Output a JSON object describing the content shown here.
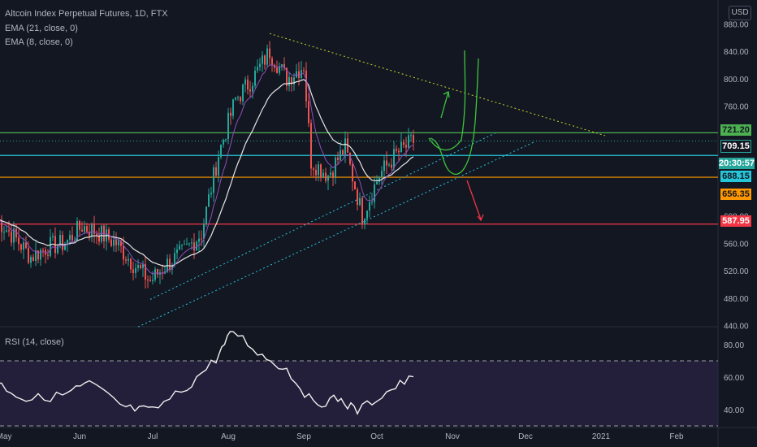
{
  "header": {
    "symbol_line": "Altcoin Index Perpetual Futures, 1D, FTX",
    "ema21_label": "EMA (21, close, 0)",
    "ema8_label": "EMA (8, close, 0)",
    "currency": "USD"
  },
  "rsi_panel": {
    "label": "RSI (14, close)"
  },
  "price_tags": {
    "resistance": "721.20",
    "last_price": "709.15",
    "countdown": "20:30:57",
    "ema_fast": "688.15",
    "support": "656.35",
    "lower_support": "587.95"
  },
  "colors": {
    "background": "#131722",
    "up": "#26a69a",
    "down": "#ef5350",
    "resistance_line": "#4caf50",
    "cyan_line": "#26c6da",
    "orange_line": "#ff9800",
    "red_line": "#f23645",
    "trend_yellow": "#c9d42a",
    "rsi_band": "#2a2141"
  },
  "chart_data": [
    {
      "type": "candlestick",
      "title": "Altcoin Index Perpetual Futures, 1D, FTX",
      "x_tick_labels": [
        "May",
        "Jun",
        "Jul",
        "Aug",
        "Sep",
        "Oct",
        "Nov",
        "Dec",
        "2021",
        "Feb"
      ],
      "y_ticks": [
        440,
        480,
        520,
        560,
        600,
        640,
        680,
        720,
        760,
        800,
        840,
        880
      ],
      "y_tick_labels": [
        "440.00",
        "480.00",
        "520.00",
        "560.00",
        "600.00",
        "",
        "",
        "",
        "760.00",
        "800.00",
        "840.00",
        "880.00"
      ],
      "ylim": [
        435,
        890
      ],
      "horizontal_levels": [
        {
          "label": "721.20",
          "value": 721.2,
          "color": "#4caf50"
        },
        {
          "label": "688.15",
          "value": 688.15,
          "color": "#26c6da"
        },
        {
          "label": "656.35",
          "value": 656.35,
          "color": "#ff9800"
        },
        {
          "label": "587.95",
          "value": 587.95,
          "color": "#f23645"
        }
      ],
      "last_price": 709.15,
      "close_series": [
        {
          "date": "2020-04-28",
          "value": 595
        },
        {
          "date": "2020-05-05",
          "value": 570
        },
        {
          "date": "2020-05-12",
          "value": 540
        },
        {
          "date": "2020-05-19",
          "value": 555
        },
        {
          "date": "2020-05-26",
          "value": 560
        },
        {
          "date": "2020-06-02",
          "value": 585
        },
        {
          "date": "2020-06-09",
          "value": 575
        },
        {
          "date": "2020-06-16",
          "value": 560
        },
        {
          "date": "2020-06-23",
          "value": 530
        },
        {
          "date": "2020-06-30",
          "value": 505
        },
        {
          "date": "2020-07-07",
          "value": 530
        },
        {
          "date": "2020-07-14",
          "value": 548
        },
        {
          "date": "2020-07-21",
          "value": 575
        },
        {
          "date": "2020-07-28",
          "value": 690
        },
        {
          "date": "2020-08-04",
          "value": 770
        },
        {
          "date": "2020-08-11",
          "value": 800
        },
        {
          "date": "2020-08-18",
          "value": 840
        },
        {
          "date": "2020-08-25",
          "value": 800
        },
        {
          "date": "2020-09-01",
          "value": 820
        },
        {
          "date": "2020-09-04",
          "value": 680
        },
        {
          "date": "2020-09-11",
          "value": 660
        },
        {
          "date": "2020-09-18",
          "value": 700
        },
        {
          "date": "2020-09-25",
          "value": 600
        },
        {
          "date": "2020-10-02",
          "value": 660
        },
        {
          "date": "2020-10-09",
          "value": 690
        },
        {
          "date": "2020-10-16",
          "value": 709
        }
      ]
    },
    {
      "type": "line",
      "title": "RSI (14, close)",
      "y_ticks": [
        40,
        60,
        80
      ],
      "y_tick_labels": [
        "40.00",
        "60.00",
        "80.00"
      ],
      "ylim": [
        25,
        92
      ],
      "band": [
        30,
        70
      ],
      "values": [
        {
          "date": "2020-04-28",
          "value": 58
        },
        {
          "date": "2020-05-10",
          "value": 45
        },
        {
          "date": "2020-05-25",
          "value": 50
        },
        {
          "date": "2020-06-05",
          "value": 55
        },
        {
          "date": "2020-06-20",
          "value": 42
        },
        {
          "date": "2020-07-01",
          "value": 38
        },
        {
          "date": "2020-07-15",
          "value": 55
        },
        {
          "date": "2020-07-27",
          "value": 70
        },
        {
          "date": "2020-08-03",
          "value": 90
        },
        {
          "date": "2020-08-15",
          "value": 72
        },
        {
          "date": "2020-08-25",
          "value": 66
        },
        {
          "date": "2020-09-05",
          "value": 42
        },
        {
          "date": "2020-09-15",
          "value": 48
        },
        {
          "date": "2020-09-23",
          "value": 38
        },
        {
          "date": "2020-10-05",
          "value": 52
        },
        {
          "date": "2020-10-16",
          "value": 59
        }
      ]
    }
  ]
}
